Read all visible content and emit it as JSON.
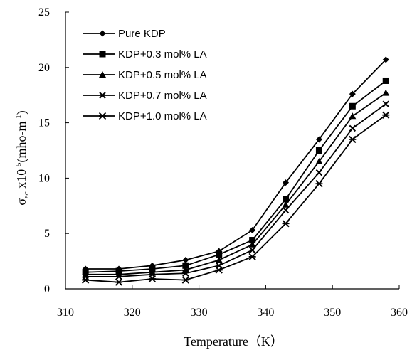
{
  "chart_data": {
    "type": "line",
    "xlabel": "Temperature（K）",
    "ylabel": {
      "symbol": "σ",
      "subscript": "ac",
      "multiplier": " x10",
      "exponent": "-5",
      "unit": "(mho-m",
      "unit_exponent": "-1",
      "unit_close": ")"
    },
    "xlim": [
      310,
      360
    ],
    "ylim": [
      0,
      25
    ],
    "xticks": [
      "310",
      "320",
      "330",
      "340",
      "350",
      "360"
    ],
    "yticks": [
      "0",
      "5",
      "10",
      "15",
      "20",
      "25"
    ],
    "x": [
      313,
      318,
      323,
      328,
      333,
      338,
      343,
      348,
      353,
      358
    ],
    "legend_position": "top-left",
    "grid": false,
    "series": [
      {
        "name": "Pure KDP",
        "marker": "diamond",
        "color": "#000000",
        "values": [
          1.8,
          1.8,
          2.1,
          2.6,
          3.4,
          5.3,
          9.6,
          13.5,
          17.6,
          20.7
        ]
      },
      {
        "name": "KDP+0.3 mol% LA",
        "marker": "square",
        "color": "#000000",
        "values": [
          1.5,
          1.6,
          1.8,
          2.1,
          3.1,
          4.4,
          8.1,
          12.5,
          16.5,
          18.8
        ]
      },
      {
        "name": "KDP+0.5 mol% LA",
        "marker": "triangle",
        "color": "#000000",
        "values": [
          1.3,
          1.3,
          1.5,
          1.7,
          2.6,
          4.0,
          7.6,
          11.5,
          15.6,
          17.7
        ]
      },
      {
        "name": "KDP+0.7 mol% LA",
        "marker": "x",
        "color": "#000000",
        "values": [
          1.1,
          1.1,
          1.3,
          1.4,
          2.1,
          3.5,
          7.1,
          10.5,
          14.5,
          16.7
        ]
      },
      {
        "name": "KDP+1.0 mol% LA",
        "marker": "star",
        "color": "#000000",
        "values": [
          0.8,
          0.6,
          0.9,
          0.8,
          1.7,
          2.9,
          5.9,
          9.5,
          13.5,
          15.7
        ]
      }
    ]
  }
}
